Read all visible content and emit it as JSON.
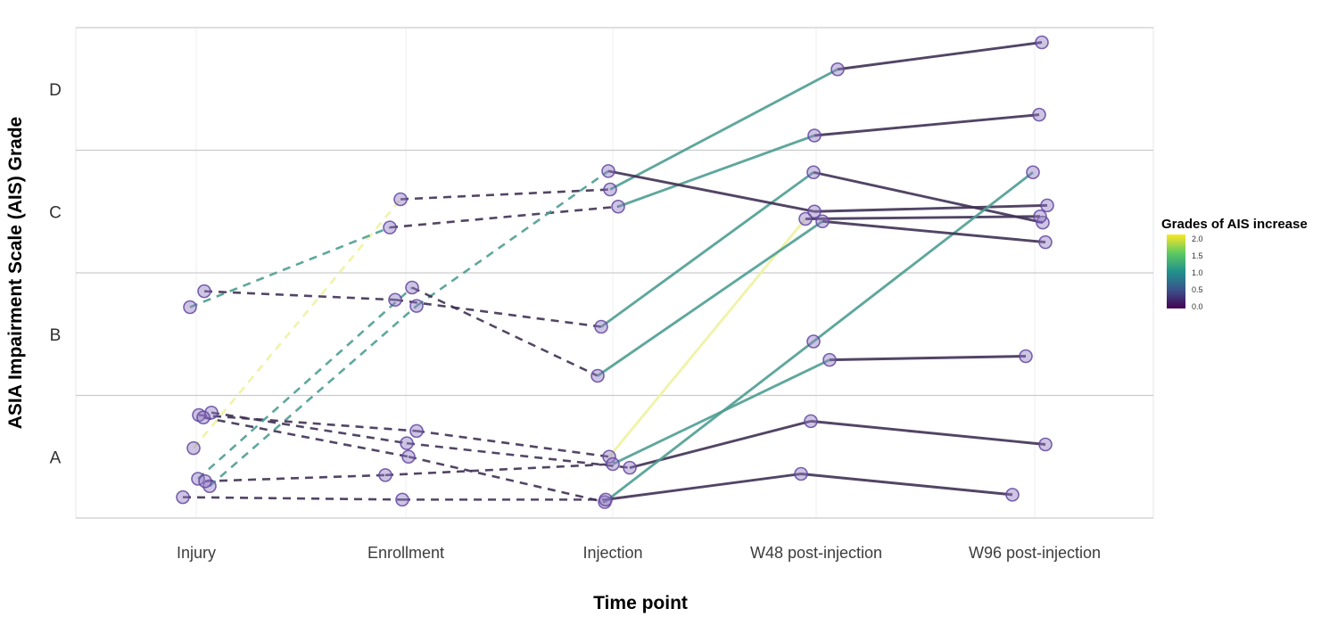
{
  "chart_data": {
    "type": "line",
    "title": "",
    "xlabel": "Time point",
    "ylabel": "ASIA Impairment Scale (AIS) Grade",
    "categories": [
      "Injury",
      "Enrollment",
      "Injection",
      "W48 post-injection",
      "W96 post-injection"
    ],
    "y_tick_labels": [
      "A",
      "B",
      "C",
      "D"
    ],
    "ylim_grades": [
      0.5,
      4.5
    ],
    "grid": "horizontal-major",
    "line_style_note": "segments dashed before Injection, solid after Injection",
    "legend": {
      "title": "Grades of AIS increase",
      "ticks": [
        "2.0",
        "1.5",
        "1.0",
        "0.5",
        "0.0"
      ],
      "colormap": "viridis",
      "position": "right"
    },
    "increase_colors": {
      "0": "#3f3154",
      "1": "#4e9d92",
      "2": "#eef2a0"
    },
    "point_fill": "rgba(146,124,195,0.45)",
    "point_stroke": "rgba(98,70,160,0.85)",
    "series": [
      {
        "id": "patient-1",
        "grades": [
          "A",
          "C",
          "C",
          "D",
          "D"
        ],
        "v": [
          1.07,
          3.1,
          3.18,
          4.16,
          4.38
        ],
        "x_jitter": [
          -3,
          -6,
          -3,
          24,
          8
        ],
        "segment_increase": [
          2,
          0,
          1,
          0
        ]
      },
      {
        "id": "patient-2",
        "grades": [
          "B",
          "C",
          "C",
          "D",
          "D"
        ],
        "v": [
          2.22,
          2.87,
          3.04,
          3.62,
          3.79
        ],
        "x_jitter": [
          -7,
          -18,
          6,
          -2,
          5
        ],
        "segment_increase": [
          1,
          0,
          1,
          0
        ]
      },
      {
        "id": "patient-3",
        "grades": [
          "B",
          "B",
          "B",
          "C",
          "C"
        ],
        "v": [
          2.35,
          2.28,
          2.06,
          3.32,
          2.91
        ],
        "x_jitter": [
          9,
          -12,
          -13,
          -3,
          9
        ],
        "segment_increase": [
          0,
          0,
          1,
          0
        ]
      },
      {
        "id": "patient-4",
        "grades": [
          "A",
          "B",
          "C",
          "C",
          "C"
        ],
        "v": [
          0.76,
          2.23,
          3.33,
          3.0,
          3.05
        ],
        "x_jitter": [
          15,
          12,
          -5,
          -2,
          14
        ],
        "segment_increase": [
          1,
          1,
          0,
          0
        ]
      },
      {
        "id": "patient-5",
        "grades": [
          "A",
          "A",
          "A",
          "C",
          "C"
        ],
        "v": [
          1.34,
          1.21,
          1.0,
          2.94,
          2.96
        ],
        "x_jitter": [
          3,
          12,
          -4,
          -12,
          6
        ],
        "segment_increase": [
          0,
          0,
          2,
          0
        ]
      },
      {
        "id": "patient-6",
        "grades": [
          "A",
          "A",
          "A",
          "A",
          "A"
        ],
        "v": [
          1.36,
          1.11,
          0.91,
          1.29,
          1.1
        ],
        "x_jitter": [
          17,
          1,
          19,
          -6,
          12
        ],
        "segment_increase": [
          0,
          0,
          0,
          0
        ]
      },
      {
        "id": "patient-7",
        "grades": [
          "A",
          "A",
          "A",
          "B",
          "C"
        ],
        "v": [
          1.32,
          1.0,
          0.63,
          1.94,
          3.32
        ],
        "x_jitter": [
          8,
          3,
          -9,
          -3,
          -2
        ],
        "segment_increase": [
          0,
          0,
          1,
          1
        ]
      },
      {
        "id": "patient-8",
        "grades": [
          "A",
          "B",
          "B",
          "C",
          "C"
        ],
        "v": [
          0.82,
          2.38,
          1.66,
          2.92,
          2.75
        ],
        "x_jitter": [
          2,
          7,
          -17,
          7,
          12
        ],
        "segment_increase": [
          1,
          0,
          1,
          0
        ]
      },
      {
        "id": "patient-9",
        "grades": [
          "A",
          "A",
          "A",
          "B",
          "B"
        ],
        "v": [
          0.8,
          0.85,
          0.94,
          1.79,
          1.82
        ],
        "x_jitter": [
          10,
          -23,
          0,
          15,
          -10
        ],
        "segment_increase": [
          0,
          0,
          1,
          0
        ]
      },
      {
        "id": "patient-10",
        "grades": [
          "A",
          "A",
          "A",
          "A",
          "A"
        ],
        "v": [
          0.67,
          0.65,
          0.65,
          0.86,
          0.69
        ],
        "x_jitter": [
          -15,
          -4,
          -8,
          -17,
          -25
        ],
        "segment_increase": [
          0,
          0,
          0,
          0
        ]
      }
    ]
  }
}
